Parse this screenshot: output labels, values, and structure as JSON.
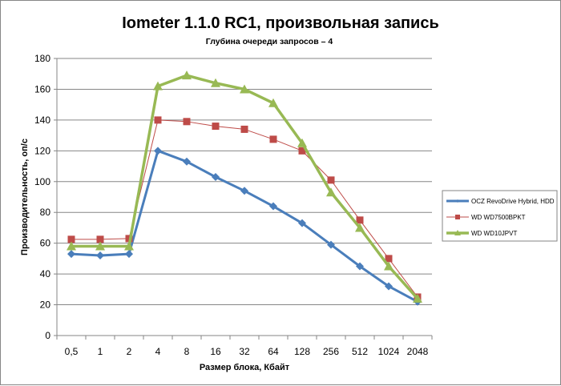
{
  "chart_data": {
    "type": "line",
    "title": "Iometer 1.1.0 RC1, произвольная запись",
    "subtitle": "Глубина очереди запросов – 4",
    "xlabel": "Размер блока, Кбайт",
    "ylabel": "Производительность, оп/с",
    "ylim": [
      0,
      180
    ],
    "yticks": [
      0,
      20,
      40,
      60,
      80,
      100,
      120,
      140,
      160,
      180
    ],
    "grid": true,
    "legend_position": "right",
    "categories": [
      "0,5",
      "1",
      "2",
      "4",
      "8",
      "16",
      "32",
      "64",
      "128",
      "256",
      "512",
      "1024",
      "2048"
    ],
    "series": [
      {
        "name": "OCZ RevoDrive Hybrid, HDD",
        "color": "#4A7EBB",
        "marker": "diamond",
        "values": [
          53,
          52,
          53,
          120,
          113,
          103,
          94,
          84,
          73,
          59,
          45,
          32,
          22
        ]
      },
      {
        "name": "WD WD7500BPKT",
        "color": "#BE4B48",
        "marker": "square",
        "values": [
          62.5,
          62.5,
          63,
          140,
          139,
          136,
          134,
          127.5,
          120,
          101,
          75,
          50,
          25
        ]
      },
      {
        "name": "WD WD10JPVT",
        "color": "#98B954",
        "marker": "triangle",
        "values": [
          58,
          58,
          58,
          162,
          169,
          164,
          160,
          151,
          125,
          93,
          70,
          45,
          24
        ]
      }
    ]
  }
}
